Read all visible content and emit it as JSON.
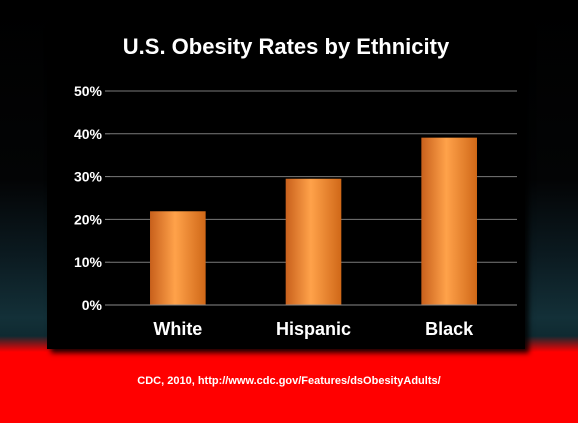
{
  "chart_data": {
    "type": "bar",
    "title": "U.S. Obesity Rates by Ethnicity",
    "categories": [
      "White",
      "Hispanic",
      "Black"
    ],
    "values": [
      21.9,
      29.5,
      39.1
    ],
    "ylim": [
      0,
      50
    ],
    "yticks": [
      0,
      10,
      20,
      30,
      40,
      50
    ],
    "ytick_labels": [
      "0%",
      "10%",
      "20%",
      "30%",
      "40%",
      "50%"
    ],
    "xlabel": "",
    "ylabel": "",
    "grid": true,
    "bar_color": "#f08a2c"
  },
  "source_text": "CDC, 2010, http://www.cdc.gov/Features/dsObesityAdults/",
  "colors": {
    "background_top": "#000000",
    "band_bottom": "#ff0000",
    "text": "#ffffff"
  }
}
